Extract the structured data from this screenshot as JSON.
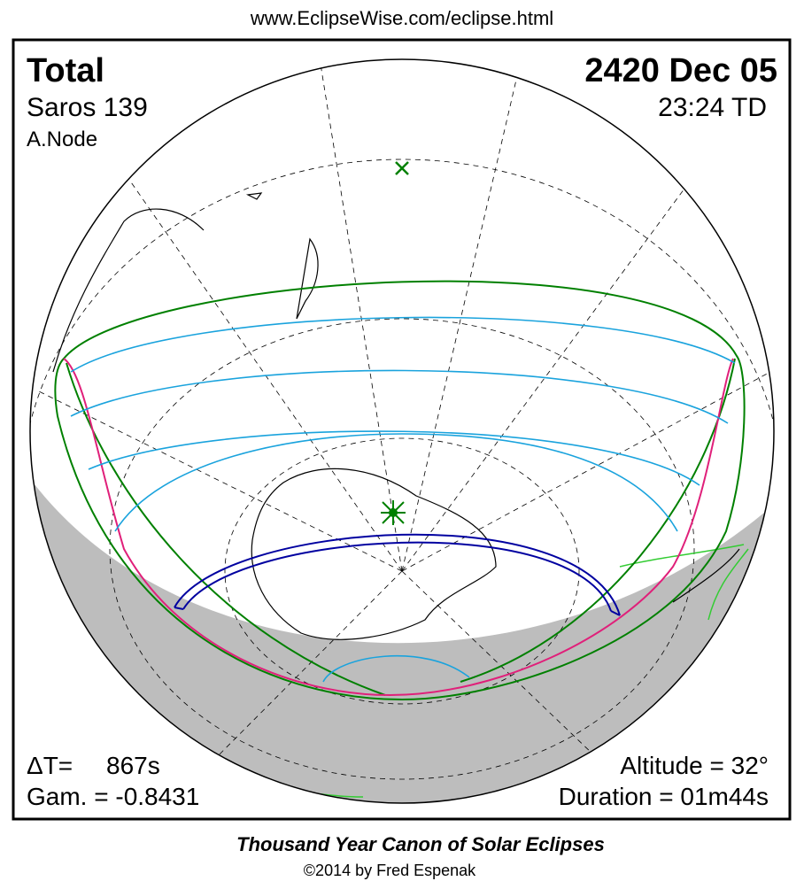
{
  "header": {
    "url": "www.EclipseWise.com/eclipse.html"
  },
  "eclipse": {
    "type": "Total",
    "saros": "Saros 139",
    "node": "A.Node",
    "date": "2420 Dec 05",
    "time": "23:24 TD",
    "delta_t_label": "ΔT=",
    "delta_t": "867s",
    "gamma": "Gam. = -0.8431",
    "altitude": "Altitude = 32°",
    "duration": "Duration = 01m44s"
  },
  "footer": {
    "title": "Thousand Year Canon of Solar Eclipses",
    "copyright": "©2014 by Fred Espenak"
  }
}
